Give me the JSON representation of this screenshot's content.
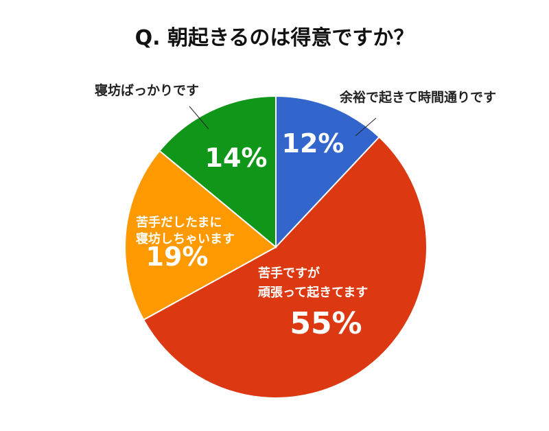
{
  "chart_data": {
    "type": "pie",
    "title": "Q. 朝起きるのは得意ですか？",
    "slices": [
      {
        "label": "余裕で起きて時間通りです",
        "value": 12,
        "value_label": "12%",
        "color": "#3366cc"
      },
      {
        "label": "苦手ですが\n頑張って起きてます",
        "value": 55,
        "value_label": "55%",
        "color": "#dc3912"
      },
      {
        "label": "苦手だしたまに\n寝坊しちゃいます",
        "value": 19,
        "value_label": "19%",
        "color": "#ff9900"
      },
      {
        "label": "寝坊ばっかりです",
        "value": 14,
        "value_label": "14%",
        "color": "#109618"
      }
    ]
  }
}
